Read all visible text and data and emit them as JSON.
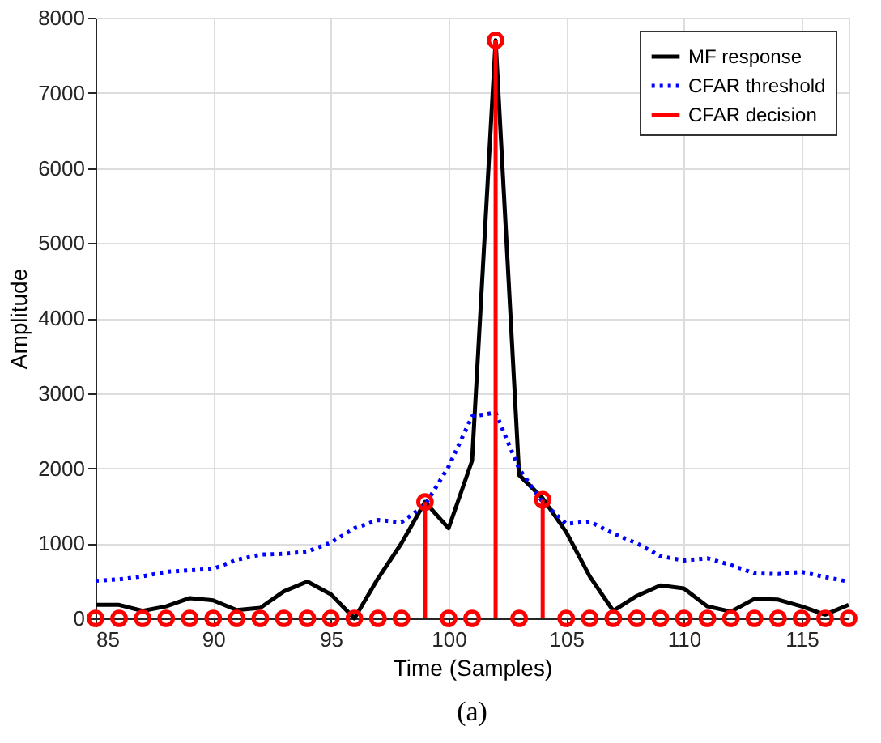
{
  "chart_data": {
    "type": "line",
    "xlabel": "Time (Samples)",
    "ylabel": "Amplitude",
    "annotations": [
      "(a)"
    ],
    "x": [
      85,
      86,
      87,
      88,
      89,
      90,
      91,
      92,
      93,
      94,
      95,
      96,
      97,
      98,
      99,
      100,
      101,
      102,
      103,
      104,
      105,
      106,
      107,
      108,
      109,
      110,
      111,
      112,
      113,
      114,
      115,
      116,
      117
    ],
    "xlim": [
      85,
      117
    ],
    "xticks": [
      85,
      90,
      95,
      100,
      105,
      110,
      115
    ],
    "ylim": [
      0,
      8000
    ],
    "yticks": [
      0,
      1000,
      2000,
      3000,
      4000,
      5000,
      6000,
      7000,
      8000
    ],
    "grid": true,
    "legend": "top right",
    "series": [
      {
        "name": "MF response",
        "color": "#000000",
        "line_style": "solid",
        "values": [
          180,
          180,
          100,
          160,
          270,
          240,
          110,
          140,
          360,
          490,
          320,
          0,
          530,
          1000,
          1550,
          1200,
          2100,
          7700,
          1910,
          1600,
          1150,
          560,
          100,
          300,
          440,
          400,
          160,
          90,
          260,
          250,
          160,
          50,
          180
        ]
      },
      {
        "name": "CFAR threshold",
        "color": "#0000ff",
        "line_style": "dotted",
        "values": [
          500,
          520,
          560,
          620,
          640,
          660,
          780,
          850,
          860,
          890,
          1010,
          1200,
          1310,
          1280,
          1510,
          2020,
          2690,
          2740,
          1990,
          1550,
          1260,
          1290,
          1130,
          1000,
          830,
          770,
          800,
          710,
          600,
          590,
          620,
          550,
          490
        ]
      },
      {
        "name": "CFAR decision",
        "type": "lollipop",
        "color": "#ff0000",
        "marker": "circle",
        "line_style": "solid",
        "values": [
          0,
          0,
          0,
          0,
          0,
          0,
          0,
          0,
          0,
          0,
          0,
          0,
          0,
          0,
          1550,
          0,
          0,
          7700,
          0,
          1580,
          0,
          0,
          0,
          0,
          0,
          0,
          0,
          0,
          0,
          0,
          0,
          0,
          0
        ]
      }
    ]
  }
}
